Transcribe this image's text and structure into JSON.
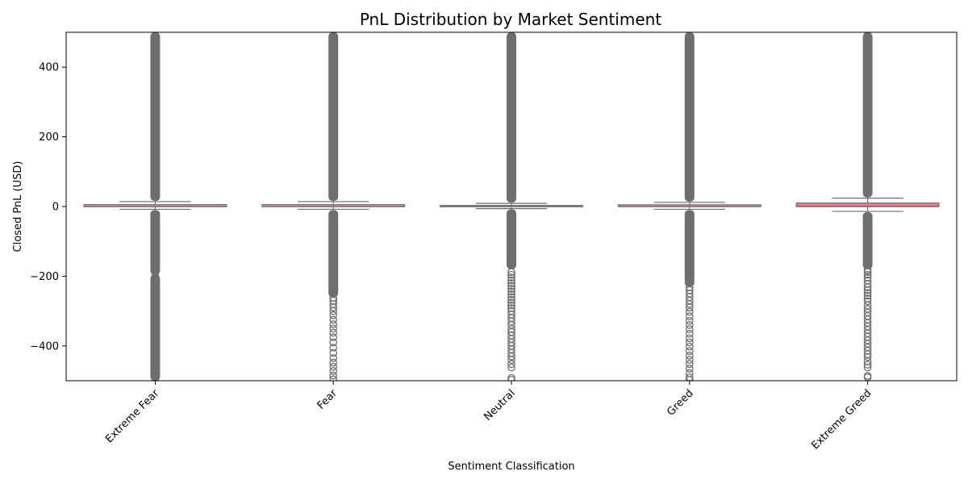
{
  "chart_data": {
    "type": "box",
    "title": "PnL Distribution by Market Sentiment",
    "xlabel": "Sentiment Classification",
    "ylabel": "Closed PnL (USD)",
    "ylim": [
      -500,
      500
    ],
    "yticks": [
      -400,
      -200,
      0,
      200,
      400
    ],
    "ytick_labels": [
      "−400",
      "−200",
      "0",
      "200",
      "400"
    ],
    "grid": false,
    "legend": "none",
    "categories": [
      "Extreme Fear",
      "Fear",
      "Neutral",
      "Greed",
      "Extreme Greed"
    ],
    "boxes": [
      {
        "category": "Extreme Fear",
        "q1": 0,
        "median": 0,
        "q3": 5.5,
        "whisker_low": -8,
        "whisker_high": 14,
        "color": "#e8a0a8",
        "outlier_bands": [
          [
            -500,
            -196
          ],
          [
            -196,
            -10
          ],
          [
            16,
            500
          ]
        ],
        "outliers": [
          -498,
          -486,
          -475,
          -462,
          -450,
          -438,
          -425,
          -412,
          -400,
          -388,
          -375,
          -362,
          -350,
          -338,
          -325,
          -312,
          -300,
          -290,
          -280,
          -270,
          -262,
          -252,
          -244,
          -236,
          -228,
          -220,
          -212,
          -205,
          -198
        ]
      },
      {
        "category": "Fear",
        "q1": 0,
        "median": 0,
        "q3": 5.5,
        "whisker_low": -8,
        "whisker_high": 14,
        "color": "#e8a0a8",
        "outlier_bands": [
          [
            -260,
            -10
          ],
          [
            16,
            500
          ]
        ],
        "outliers": [
          -496,
          -485,
          -472,
          -460,
          -448,
          -435,
          -420,
          -405,
          -390,
          -375,
          -362,
          -350,
          -338,
          -325,
          -312,
          -300,
          -290,
          -280,
          -270,
          -262
        ]
      },
      {
        "category": "Neutral",
        "q1": -0.5,
        "median": 0,
        "q3": 3,
        "whisker_low": -6,
        "whisker_high": 9,
        "color": "#e8a0a8",
        "outlier_bands": [
          [
            -180,
            -8
          ],
          [
            11,
            500
          ]
        ],
        "outliers": [
          -497,
          -492,
          -462,
          -452,
          -440,
          -430,
          -420,
          -410,
          -400,
          -390,
          -380,
          -370,
          -360,
          -352,
          -340,
          -330,
          -320,
          -310,
          -300,
          -292,
          -284,
          -276,
          -268,
          -260,
          -252,
          -244,
          -236,
          -228,
          -220,
          -212,
          -204,
          -196,
          -188
        ]
      },
      {
        "category": "Greed",
        "q1": 0,
        "median": 0,
        "q3": 5,
        "whisker_low": -8,
        "whisker_high": 12,
        "color": "#e8a0a8",
        "outlier_bands": [
          [
            -230,
            -10
          ],
          [
            14,
            500
          ]
        ],
        "outliers": [
          -497,
          -490,
          -478,
          -465,
          -452,
          -440,
          -428,
          -415,
          -402,
          -390,
          -378,
          -365,
          -352,
          -340,
          -328,
          -315,
          -302,
          -290,
          -280,
          -270,
          -260,
          -250,
          -240,
          -232
        ]
      },
      {
        "category": "Extreme Greed",
        "q1": 0,
        "median": 0,
        "q3": 10,
        "whisker_low": -14,
        "whisker_high": 24,
        "color": "#f07b92",
        "outlier_bands": [
          [
            -180,
            -16
          ],
          [
            26,
            500
          ]
        ],
        "outliers": [
          -490,
          -486,
          -462,
          -454,
          -444,
          -432,
          -424,
          -414,
          -404,
          -394,
          -384,
          -374,
          -364,
          -354,
          -344,
          -334,
          -324,
          -314,
          -304,
          -294,
          -284,
          -272,
          -264,
          -256,
          -248,
          -240,
          -232,
          -222,
          -212,
          -204,
          -196,
          -188,
          -182
        ]
      }
    ]
  }
}
